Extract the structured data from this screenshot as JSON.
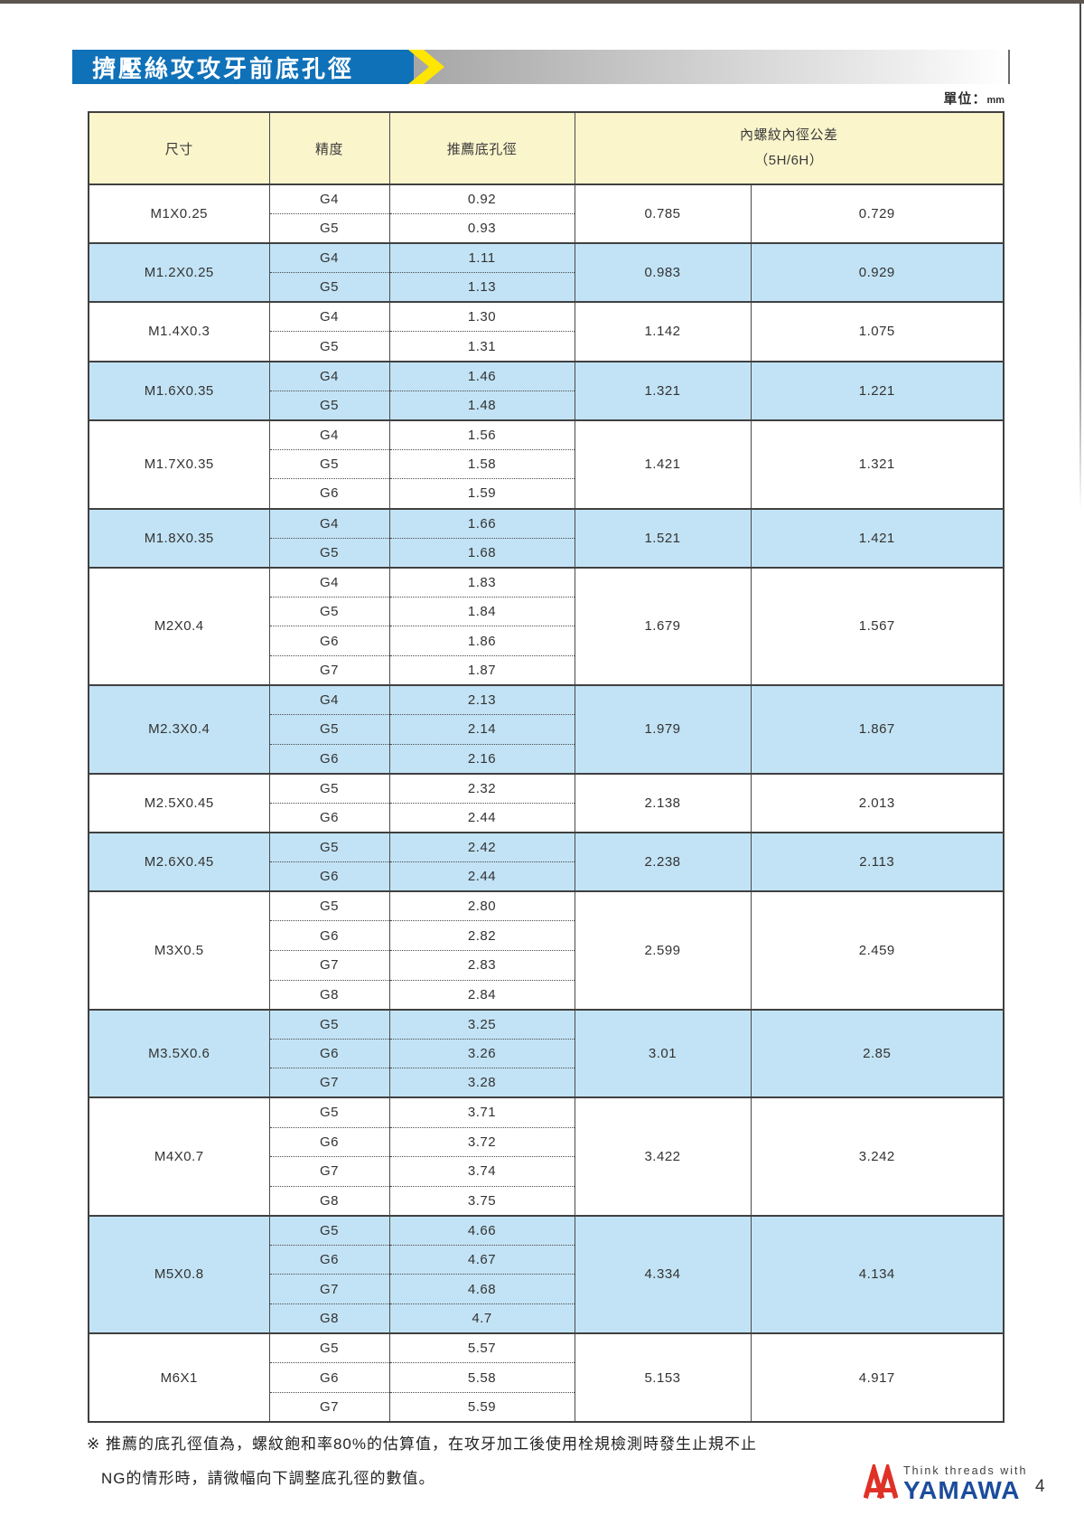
{
  "page": {
    "title": "擠壓絲攻攻牙前底孔徑",
    "unit_label": "單位：",
    "unit_value": "mm",
    "page_number": "4"
  },
  "table": {
    "headers": {
      "size": "尺寸",
      "grade": "精度",
      "hole": "推薦底孔徑",
      "tolerance_line1": "內螺紋內徑公差",
      "tolerance_line2": "（5H/6H）"
    },
    "groups": [
      {
        "size": "M1X0.25",
        "shade": false,
        "grades": [
          [
            "G4",
            "0.92"
          ],
          [
            "G5",
            "0.93"
          ]
        ],
        "tol": [
          "0.785",
          "0.729"
        ]
      },
      {
        "size": "M1.2X0.25",
        "shade": true,
        "grades": [
          [
            "G4",
            "1.11"
          ],
          [
            "G5",
            "1.13"
          ]
        ],
        "tol": [
          "0.983",
          "0.929"
        ]
      },
      {
        "size": "M1.4X0.3",
        "shade": false,
        "grades": [
          [
            "G4",
            "1.30"
          ],
          [
            "G5",
            "1.31"
          ]
        ],
        "tol": [
          "1.142",
          "1.075"
        ]
      },
      {
        "size": "M1.6X0.35",
        "shade": true,
        "grades": [
          [
            "G4",
            "1.46"
          ],
          [
            "G5",
            "1.48"
          ]
        ],
        "tol": [
          "1.321",
          "1.221"
        ]
      },
      {
        "size": "M1.7X0.35",
        "shade": false,
        "grades": [
          [
            "G4",
            "1.56"
          ],
          [
            "G5",
            "1.58"
          ],
          [
            "G6",
            "1.59"
          ]
        ],
        "tol": [
          "1.421",
          "1.321"
        ]
      },
      {
        "size": "M1.8X0.35",
        "shade": true,
        "grades": [
          [
            "G4",
            "1.66"
          ],
          [
            "G5",
            "1.68"
          ]
        ],
        "tol": [
          "1.521",
          "1.421"
        ]
      },
      {
        "size": "M2X0.4",
        "shade": false,
        "grades": [
          [
            "G4",
            "1.83"
          ],
          [
            "G5",
            "1.84"
          ],
          [
            "G6",
            "1.86"
          ],
          [
            "G7",
            "1.87"
          ]
        ],
        "tol": [
          "1.679",
          "1.567"
        ]
      },
      {
        "size": "M2.3X0.4",
        "shade": true,
        "grades": [
          [
            "G4",
            "2.13"
          ],
          [
            "G5",
            "2.14"
          ],
          [
            "G6",
            "2.16"
          ]
        ],
        "tol": [
          "1.979",
          "1.867"
        ]
      },
      {
        "size": "M2.5X0.45",
        "shade": false,
        "grades": [
          [
            "G5",
            "2.32"
          ],
          [
            "G6",
            "2.44"
          ]
        ],
        "tol": [
          "2.138",
          "2.013"
        ]
      },
      {
        "size": "M2.6X0.45",
        "shade": true,
        "grades": [
          [
            "G5",
            "2.42"
          ],
          [
            "G6",
            "2.44"
          ]
        ],
        "tol": [
          "2.238",
          "2.113"
        ]
      },
      {
        "size": "M3X0.5",
        "shade": false,
        "grades": [
          [
            "G5",
            "2.80"
          ],
          [
            "G6",
            "2.82"
          ],
          [
            "G7",
            "2.83"
          ],
          [
            "G8",
            "2.84"
          ]
        ],
        "tol": [
          "2.599",
          "2.459"
        ]
      },
      {
        "size": "M3.5X0.6",
        "shade": true,
        "grades": [
          [
            "G5",
            "3.25"
          ],
          [
            "G6",
            "3.26"
          ],
          [
            "G7",
            "3.28"
          ]
        ],
        "tol": [
          "3.01",
          "2.85"
        ]
      },
      {
        "size": "M4X0.7",
        "shade": false,
        "grades": [
          [
            "G5",
            "3.71"
          ],
          [
            "G6",
            "3.72"
          ],
          [
            "G7",
            "3.74"
          ],
          [
            "G8",
            "3.75"
          ]
        ],
        "tol": [
          "3.422",
          "3.242"
        ]
      },
      {
        "size": "M5X0.8",
        "shade": true,
        "grades": [
          [
            "G5",
            "4.66"
          ],
          [
            "G6",
            "4.67"
          ],
          [
            "G7",
            "4.68"
          ],
          [
            "G8",
            "4.7"
          ]
        ],
        "tol": [
          "4.334",
          "4.134"
        ]
      },
      {
        "size": "M6X1",
        "shade": false,
        "grades": [
          [
            "G5",
            "5.57"
          ],
          [
            "G6",
            "5.58"
          ],
          [
            "G7",
            "5.59"
          ]
        ],
        "tol": [
          "5.153",
          "4.917"
        ]
      }
    ]
  },
  "footnotes": {
    "line1": "※ 推薦的底孔徑值為，螺紋飽和率80%的估算值，在攻牙加工後使用栓規檢測時發生止規不止",
    "line2": "NG的情形時，請微幅向下調整底孔徑的數值。"
  },
  "footer": {
    "logo_tagline": "Think threads with",
    "logo_name": "YAMAWA"
  },
  "colors": {
    "title_bar_blue": "#0F71B8",
    "chevron_yellow": "#FFE602",
    "header_cream": "#FBF5CC",
    "row_blue": "#C2E3F5",
    "border_dark": "#404040",
    "logo_red": "#E03127",
    "logo_blue": "#1C4C9C"
  }
}
